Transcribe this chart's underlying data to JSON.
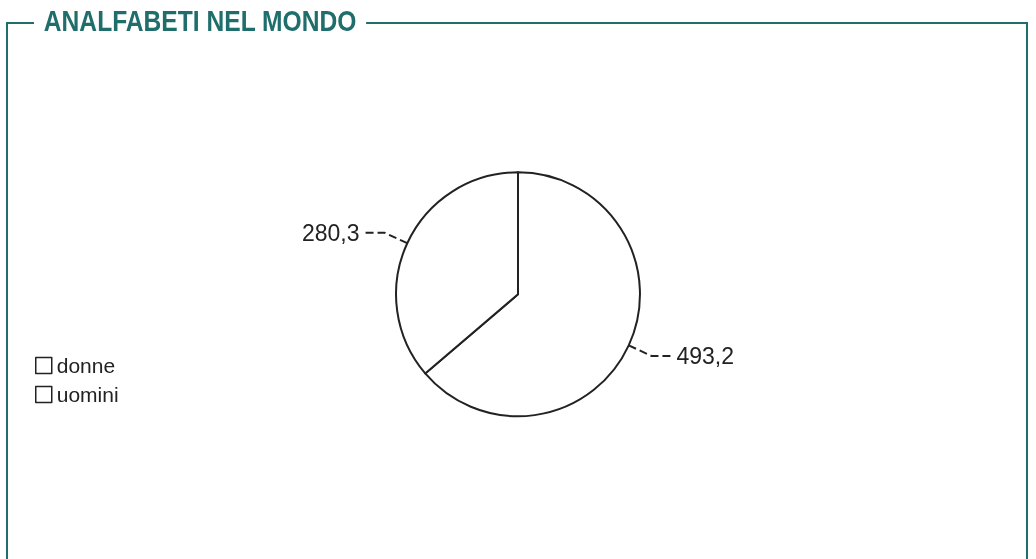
{
  "chart_data": {
    "type": "pie",
    "title": "ANALFABETI NEL MONDO",
    "categories": [
      "donne",
      "uomini"
    ],
    "values": [
      493.2,
      280.3
    ],
    "value_labels": [
      "493,2",
      "280,3"
    ],
    "colors": [
      "#ffffff",
      "#ffffff"
    ],
    "legend": "left"
  }
}
